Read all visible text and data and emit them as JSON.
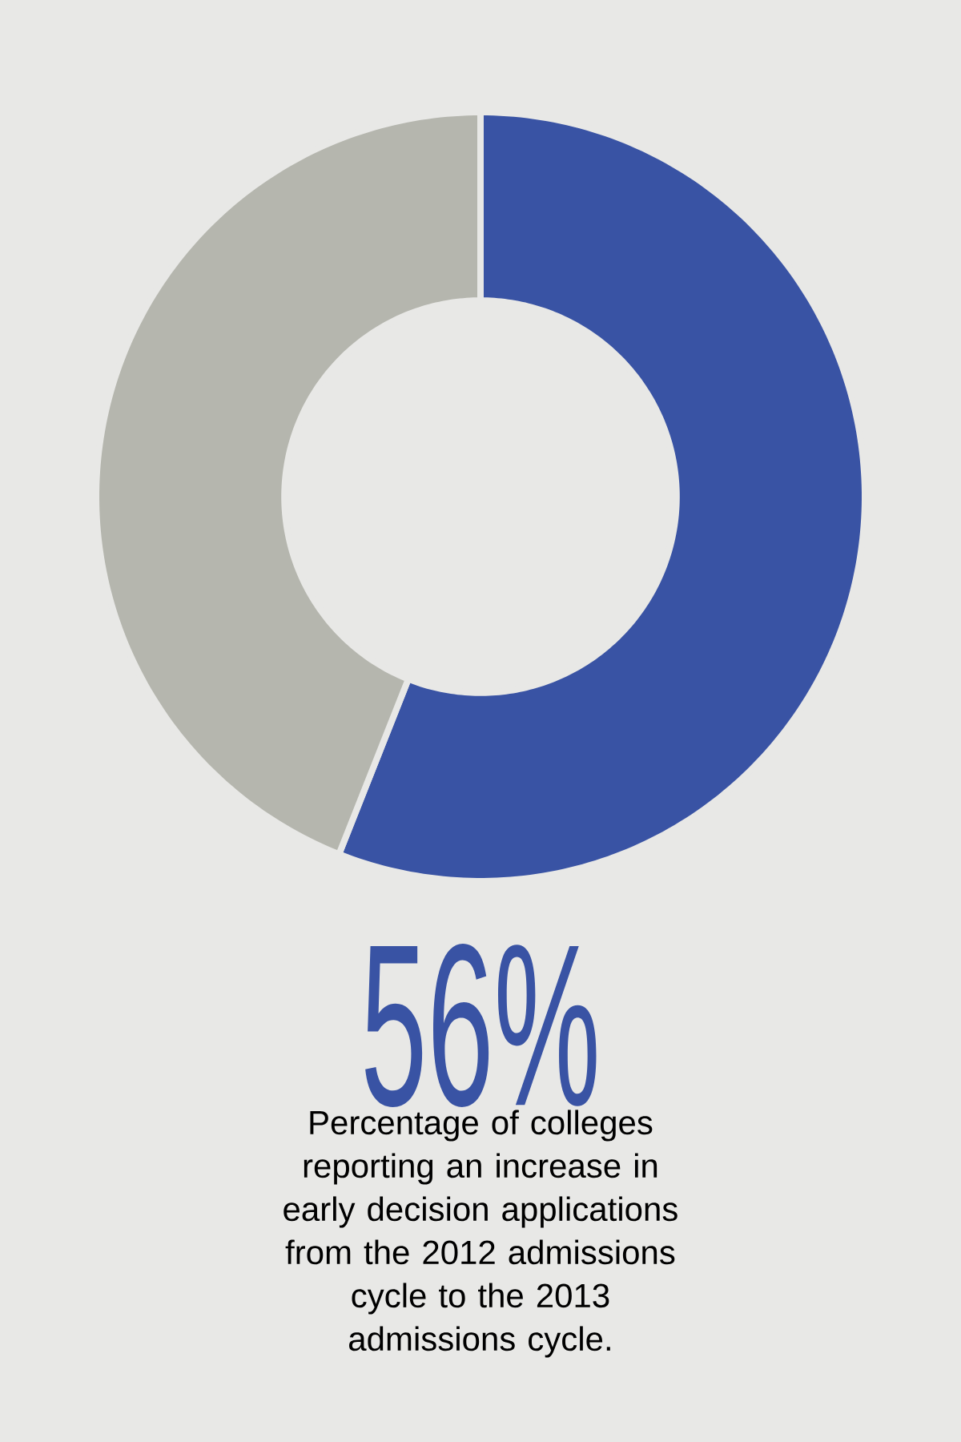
{
  "chart_data": {
    "type": "donut",
    "categories": [
      null,
      null
    ],
    "values": [
      56,
      44
    ],
    "colors": [
      "#3953a4",
      "#b5b6ae"
    ],
    "value_labels": [
      "56%",
      null
    ],
    "annotations": [
      "Percentage of colleges reporting an increase in early decision applications from the 2012 admissions cycle to the 2013 admissions cycle."
    ]
  }
}
